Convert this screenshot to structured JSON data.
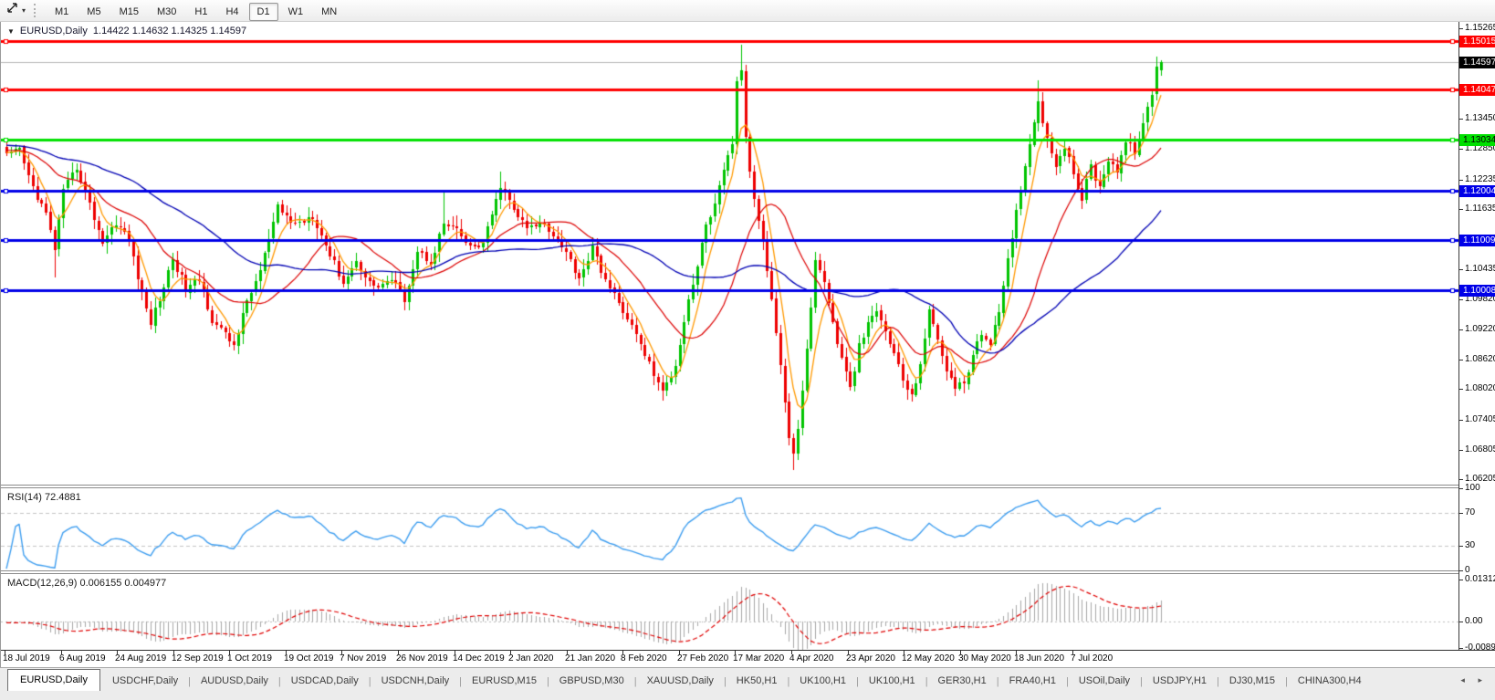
{
  "toolbar": {
    "timeframes": [
      "M1",
      "M5",
      "M15",
      "M30",
      "H1",
      "H4",
      "D1",
      "W1",
      "MN"
    ],
    "active_timeframe": "D1",
    "tool_icon": "crosshair-draw-icon",
    "dropdown_icon": "chevron-down-icon"
  },
  "chart": {
    "collapse_icon": "triangle-down-icon",
    "title": "EURUSD,Daily",
    "ohlc_text": "1.14422 1.14632 1.14325 1.14597",
    "current_price": 1.14597,
    "current_price_label": "1.14597",
    "axis": {
      "price_top": 1.154,
      "price_bottom": 1.061
    },
    "price_ticks": [
      "1.15265",
      "1.13450",
      "1.12850",
      "1.12235",
      "1.11635",
      "1.10435",
      "1.09820",
      "1.09220",
      "1.08620",
      "1.08020",
      "1.07405",
      "1.06805",
      "1.06205"
    ],
    "levels": [
      {
        "price": 1.15015,
        "label": "1.15015",
        "color": "#ff0000",
        "text_color": "#ffffff"
      },
      {
        "price": 1.14047,
        "label": "1.14047",
        "color": "#ff0000",
        "text_color": "#ffffff"
      },
      {
        "price": 1.13034,
        "label": "1.13034",
        "color": "#00e000",
        "text_color": "#000000"
      },
      {
        "price": 1.12004,
        "label": "1.12004",
        "color": "#0000e8",
        "text_color": "#ffffff"
      },
      {
        "price": 1.11009,
        "label": "1.11009",
        "color": "#0000e8",
        "text_color": "#ffffff"
      },
      {
        "price": 1.10008,
        "label": "1.10008",
        "color": "#0000e8",
        "text_color": "#ffffff"
      }
    ],
    "x_labels": [
      "18 Jul 2019",
      "6 Aug 2019",
      "24 Aug 2019",
      "12 Sep 2019",
      "1 Oct 2019",
      "19 Oct 2019",
      "7 Nov 2019",
      "26 Nov 2019",
      "14 Dec 2019",
      "2 Jan 2020",
      "21 Jan 2020",
      "8 Feb 2020",
      "27 Feb 2020",
      "17 Mar 2020",
      "4 Apr 2020",
      "23 Apr 2020",
      "12 May 2020",
      "30 May 2020",
      "18 Jun 2020",
      "7 Jul 2020"
    ]
  },
  "chart_data": {
    "type": "candlestick",
    "symbol": "EURUSD",
    "timeframe": "Daily",
    "candle_count": 265,
    "colors": {
      "up": "#00c400",
      "down": "#ee0000",
      "ma_fast": "#ff9900",
      "ma_mid": "#dd0000",
      "ma_slow": "#0000b4",
      "price_line": "#b8b8b8"
    },
    "close_waypoints": [
      [
        0,
        1.127
      ],
      [
        3,
        1.1282
      ],
      [
        5,
        1.1228
      ],
      [
        9,
        1.1152
      ],
      [
        11,
        1.1085
      ],
      [
        13,
        1.1198
      ],
      [
        16,
        1.1248
      ],
      [
        19,
        1.1172
      ],
      [
        22,
        1.1098
      ],
      [
        25,
        1.1138
      ],
      [
        28,
        1.1102
      ],
      [
        31,
        1.0992
      ],
      [
        33,
        1.0936
      ],
      [
        36,
        1.1008
      ],
      [
        38,
        1.1066
      ],
      [
        41,
        1.1002
      ],
      [
        44,
        1.1022
      ],
      [
        47,
        1.0942
      ],
      [
        52,
        1.089
      ],
      [
        55,
        1.0978
      ],
      [
        58,
        1.104
      ],
      [
        62,
        1.1165
      ],
      [
        66,
        1.1132
      ],
      [
        70,
        1.1152
      ],
      [
        74,
        1.1072
      ],
      [
        77,
        1.1016
      ],
      [
        80,
        1.1058
      ],
      [
        84,
        1.1006
      ],
      [
        88,
        1.1022
      ],
      [
        91,
        1.0984
      ],
      [
        94,
        1.1078
      ],
      [
        97,
        1.1058
      ],
      [
        100,
        1.1134
      ],
      [
        103,
        1.1118
      ],
      [
        106,
        1.1086
      ],
      [
        109,
        1.1094
      ],
      [
        112,
        1.118
      ],
      [
        113,
        1.1212
      ],
      [
        116,
        1.1162
      ],
      [
        119,
        1.1124
      ],
      [
        123,
        1.1136
      ],
      [
        127,
        1.1092
      ],
      [
        131,
        1.1026
      ],
      [
        134,
        1.1084
      ],
      [
        138,
        1.1002
      ],
      [
        142,
        1.0946
      ],
      [
        146,
        1.0872
      ],
      [
        150,
        1.0794
      ],
      [
        153,
        1.0852
      ],
      [
        156,
        1.0984
      ],
      [
        158,
        1.1048
      ],
      [
        160,
        1.1134
      ],
      [
        162,
        1.117
      ],
      [
        164,
        1.1238
      ],
      [
        166,
        1.1298
      ],
      [
        167,
        1.1418
      ],
      [
        168,
        1.1446
      ],
      [
        169,
        1.1302
      ],
      [
        171,
        1.1182
      ],
      [
        173,
        1.1106
      ],
      [
        175,
        1.0982
      ],
      [
        177,
        1.0852
      ],
      [
        179,
        1.0702
      ],
      [
        180,
        1.0668
      ],
      [
        181,
        1.0726
      ],
      [
        183,
        1.088
      ],
      [
        185,
        1.1058
      ],
      [
        187,
        1.1022
      ],
      [
        189,
        1.0932
      ],
      [
        191,
        1.0862
      ],
      [
        193,
        1.0802
      ],
      [
        195,
        1.0886
      ],
      [
        197,
        1.093
      ],
      [
        199,
        1.096
      ],
      [
        202,
        1.0896
      ],
      [
        205,
        1.0822
      ],
      [
        207,
        1.0784
      ],
      [
        209,
        1.0856
      ],
      [
        211,
        1.0956
      ],
      [
        213,
        1.0902
      ],
      [
        215,
        1.0844
      ],
      [
        217,
        1.0802
      ],
      [
        219,
        1.0816
      ],
      [
        221,
        1.087
      ],
      [
        223,
        1.0912
      ],
      [
        225,
        1.0898
      ],
      [
        227,
        1.0952
      ],
      [
        229,
        1.1058
      ],
      [
        231,
        1.1158
      ],
      [
        233,
        1.1254
      ],
      [
        235,
        1.1338
      ],
      [
        236,
        1.1386
      ],
      [
        238,
        1.1302
      ],
      [
        240,
        1.1256
      ],
      [
        242,
        1.129
      ],
      [
        244,
        1.1232
      ],
      [
        246,
        1.1186
      ],
      [
        248,
        1.125
      ],
      [
        250,
        1.1206
      ],
      [
        252,
        1.1266
      ],
      [
        254,
        1.1242
      ],
      [
        256,
        1.1298
      ],
      [
        258,
        1.1282
      ],
      [
        260,
        1.133
      ],
      [
        262,
        1.1398
      ],
      [
        263,
        1.145
      ],
      [
        264,
        1.14597
      ]
    ],
    "wick_overrides": {
      "11": {
        "low": 1.1027
      },
      "52": {
        "low": 1.0879
      },
      "100": {
        "high": 1.1199
      },
      "113": {
        "high": 1.1239
      },
      "150": {
        "low": 1.0778
      },
      "168": {
        "high": 1.1495
      },
      "180": {
        "low": 1.064
      },
      "236": {
        "high": 1.1422
      },
      "263": {
        "high": 1.147
      }
    },
    "last_candle": {
      "open": 1.14422,
      "high": 1.14632,
      "low": 1.14325,
      "close": 1.14597
    }
  },
  "rsi": {
    "label": "RSI(14) 72.4881",
    "value": 72.4881,
    "line_color": "#3e9ef0",
    "scale": [
      {
        "text": "100",
        "value": 100
      },
      {
        "text": "70",
        "value": 70
      },
      {
        "text": "30",
        "value": 30
      },
      {
        "text": "0",
        "value": 0
      }
    ],
    "dashed_levels": [
      70,
      30
    ]
  },
  "macd": {
    "label": "MACD(12,26,9) 0.006155 0.004977",
    "values": [
      0.006155,
      0.004977
    ],
    "histogram_color": "#a8a8a8",
    "signal_color": "#e00000",
    "scale": [
      {
        "text": "0.013121",
        "value": 0.013121
      },
      {
        "text": "0.00",
        "value": 0
      },
      {
        "text": "-0.00893",
        "value": -0.00893
      }
    ],
    "range": {
      "max": 0.0148,
      "min": -0.0089
    }
  },
  "tabbar": {
    "tabs": [
      "EURUSD,Daily",
      "USDCHF,Daily",
      "AUDUSD,Daily",
      "USDCAD,Daily",
      "USDCNH,Daily",
      "EURUSD,M15",
      "GBPUSD,M30",
      "XAUUSD,Daily",
      "HK50,H1",
      "UK100,H1",
      "UK100,H1",
      "GER30,H1",
      "FRA40,H1",
      "USOil,Daily",
      "USDJPY,H1",
      "DJ30,M15",
      "CHINA300,H4"
    ],
    "active_index": 0,
    "left_arrow": "◂",
    "right_arrow": "▸"
  }
}
